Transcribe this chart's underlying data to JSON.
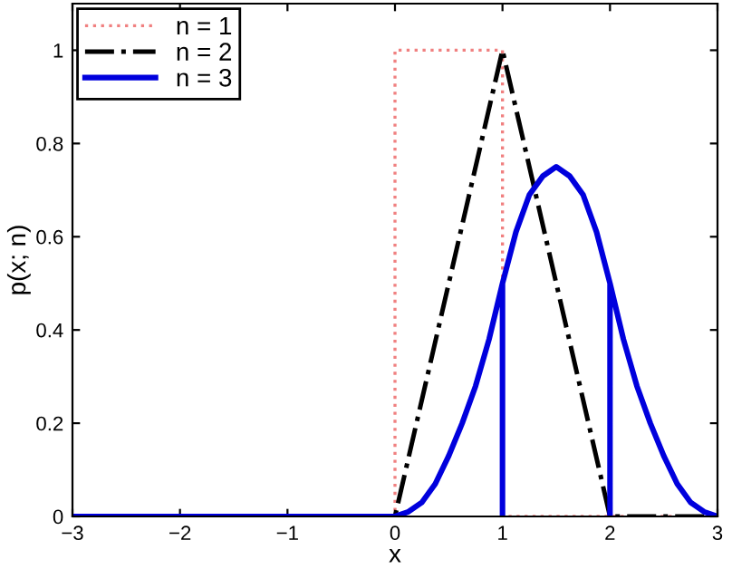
{
  "chart_data": {
    "type": "line",
    "xlabel": "x",
    "ylabel": "p(x; n)",
    "xlim": [
      -3,
      3
    ],
    "xticks": [
      {
        "value": -3,
        "label": "−3"
      },
      {
        "value": -2,
        "label": "−2"
      },
      {
        "value": -1,
        "label": "−1"
      },
      0,
      1,
      2,
      3
    ],
    "ylim": [
      0,
      1.1
    ],
    "yticks": [
      0,
      0.2,
      0.4,
      0.6,
      0.8,
      1
    ],
    "legend": "top left",
    "grid": false,
    "series": [
      {
        "name": "n = 1",
        "color": "#f08080",
        "line_style": "dotted",
        "x": [
          -3,
          0,
          0,
          1,
          1,
          3
        ],
        "values": [
          0,
          0,
          1,
          1,
          0,
          0
        ]
      },
      {
        "name": "n = 2",
        "color": "#000000",
        "line_style": "dashdot",
        "x": [
          -3,
          0,
          1,
          2,
          3
        ],
        "values": [
          0,
          0,
          1,
          0,
          0
        ]
      },
      {
        "name": "n = 3",
        "color": "#0000dd",
        "line_style": "solid",
        "x": [
          -3,
          0,
          0.125,
          0.25,
          0.375,
          0.5,
          0.625,
          0.75,
          0.875,
          1,
          1,
          1,
          1.125,
          1.25,
          1.375,
          1.5,
          1.625,
          1.75,
          1.875,
          2,
          2,
          2,
          2.125,
          2.25,
          2.375,
          2.5,
          2.625,
          2.75,
          2.875,
          3
        ],
        "values": [
          0,
          0,
          0.01,
          0.03,
          0.07,
          0.13,
          0.2,
          0.28,
          0.38,
          0.5,
          0,
          0.5,
          0.61,
          0.69,
          0.73,
          0.75,
          0.73,
          0.69,
          0.61,
          0.5,
          0,
          0.5,
          0.38,
          0.28,
          0.2,
          0.13,
          0.07,
          0.03,
          0.01,
          0
        ]
      }
    ]
  }
}
